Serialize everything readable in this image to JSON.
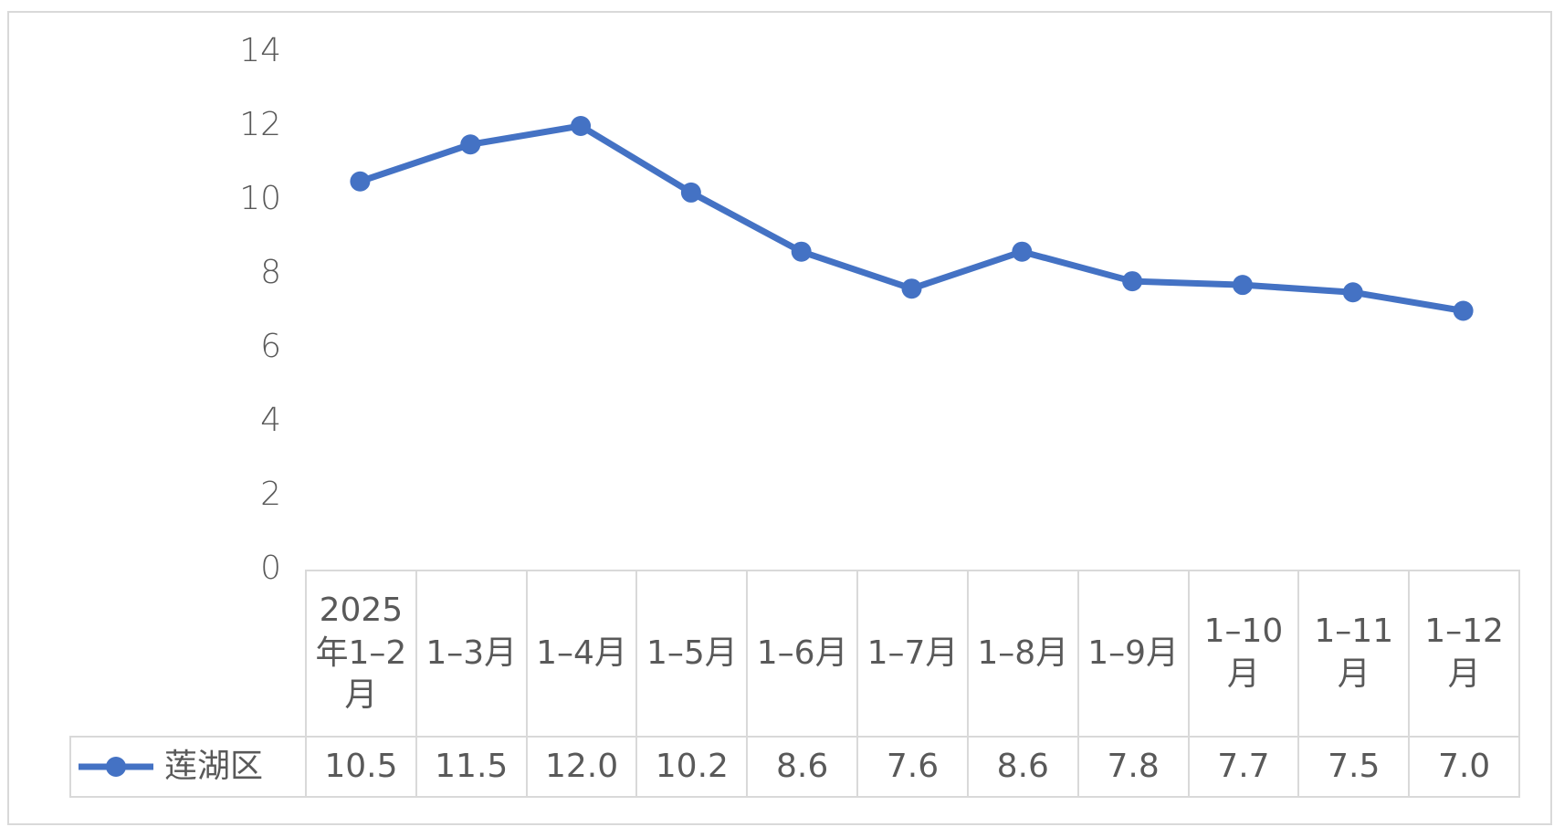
{
  "chart_data": {
    "type": "line",
    "categories": [
      "2025年1–2月",
      "1–3月",
      "1–4月",
      "1–5月",
      "1–6月",
      "1–7月",
      "1–8月",
      "1–9月",
      "1–10月",
      "1–11月",
      "1–12月"
    ],
    "series": [
      {
        "name": "莲湖区",
        "color": "#4472c4",
        "values": [
          10.5,
          11.5,
          12.0,
          10.2,
          8.6,
          7.6,
          8.6,
          7.8,
          7.7,
          7.5,
          7.0
        ],
        "value_labels": [
          "10.5",
          "11.5",
          "12.0",
          "10.2",
          "8.6",
          "7.6",
          "8.6",
          "7.8",
          "7.7",
          "7.5",
          "7.0"
        ]
      }
    ],
    "ylim": [
      0,
      14
    ],
    "yticks": [
      0,
      2,
      4,
      6,
      8,
      10,
      12,
      14
    ],
    "grid": false,
    "legend": "bottom"
  }
}
